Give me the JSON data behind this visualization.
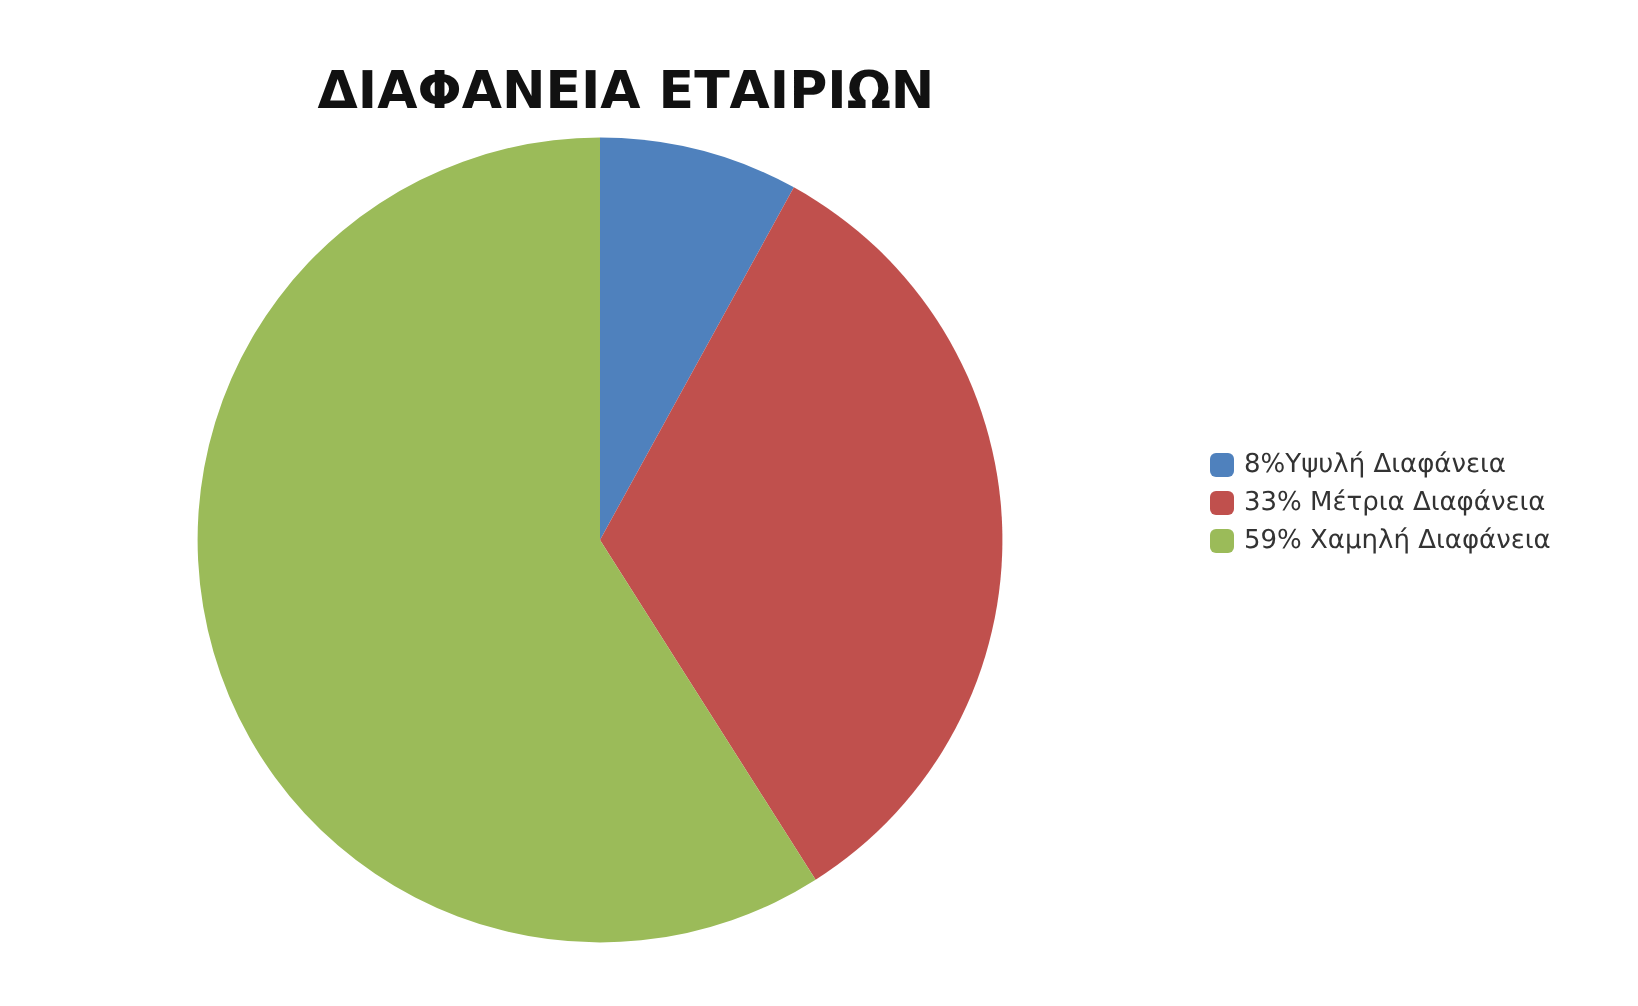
{
  "chart_data": {
    "type": "pie",
    "title": "ΔΙΑΦΑΝΕΙΑ ΕΤΑΙΡΙΩΝ",
    "categories": [
      "8%Υψυλή Διαφάνεια",
      "33% Μέτρια Διαφάνεια",
      "59% Χαμηλή Διαφάνεια"
    ],
    "values": [
      8,
      33,
      59
    ],
    "colors": [
      "#4f81bd",
      "#c0504d",
      "#9bbb59"
    ],
    "legend": "right"
  }
}
